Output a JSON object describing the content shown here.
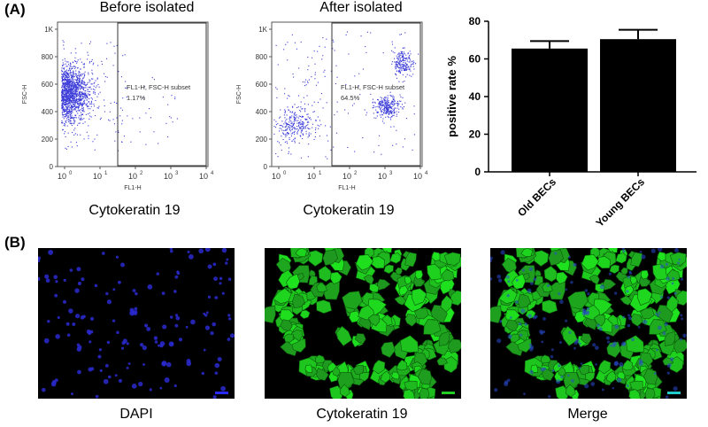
{
  "panels": {
    "a_label": "(A)",
    "b_label": "(B)"
  },
  "flow_plots": [
    {
      "title": "Before isolated",
      "gate_label_line1": "FL1-H, FSC-H subset",
      "gate_percent": "1.17%",
      "x_axis_label": "FL1-H",
      "y_axis_label": "FSC-H",
      "x_title": "Cytokeratin 19",
      "x_ticks": [
        "0",
        "1",
        "2",
        "3",
        "4"
      ],
      "y_ticks": [
        "0",
        "200",
        "400",
        "600",
        "800",
        "1K"
      ],
      "dot_color": "#3a3ad8"
    },
    {
      "title": "After isolated",
      "gate_label_line1": "FL1-H, FSC-H subset",
      "gate_percent": "64.5%",
      "x_axis_label": "FL1-H",
      "y_axis_label": "FSC-H",
      "x_title": "Cytokeratin 19",
      "x_ticks": [
        "0",
        "1",
        "2",
        "3",
        "4"
      ],
      "y_ticks": [
        "0",
        "200",
        "400",
        "600",
        "800",
        "1K"
      ],
      "dot_color": "#3a3ad8"
    }
  ],
  "chart_data": {
    "type": "bar",
    "categories": [
      "Old BECs",
      "Young BECs"
    ],
    "values": [
      65.5,
      70.5
    ],
    "errors": [
      4,
      5
    ],
    "ylabel": "positive rate %",
    "ylim": [
      0,
      80
    ],
    "yticks": [
      0,
      20,
      40,
      60,
      80
    ],
    "bar_color": "#000000"
  },
  "micrographs": [
    {
      "label": "DAPI",
      "scale_color": "#2a2aff"
    },
    {
      "label": "Cytokeratin 19",
      "scale_color": "#22cc22"
    },
    {
      "label": "Merge",
      "scale_color": "#22cccc"
    }
  ]
}
